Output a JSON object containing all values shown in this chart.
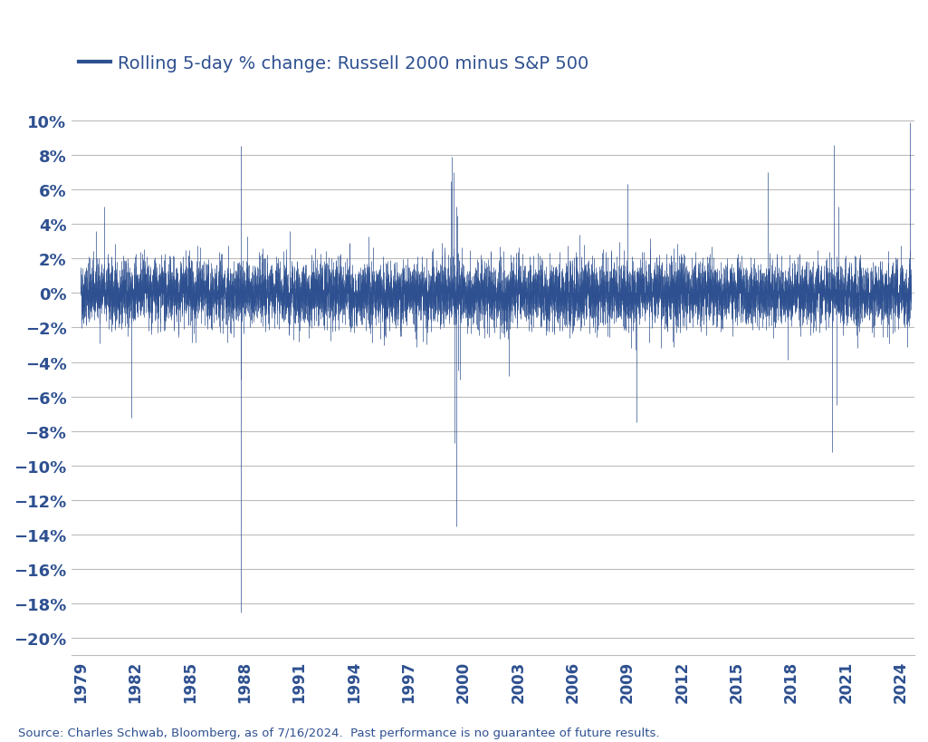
{
  "title": "Rolling 5-day % change: Russell 2000 minus S&P 500",
  "line_color": "#2E5090",
  "background_color": "#FFFFFF",
  "ylabel_ticks": [
    10,
    8,
    6,
    4,
    2,
    0,
    -2,
    -4,
    -6,
    -8,
    -10,
    -12,
    -14,
    -16,
    -18,
    -20
  ],
  "ylim": [
    -21.0,
    11.5
  ],
  "start_year": 1979,
  "end_year": 2024,
  "xtick_years": [
    1979,
    1982,
    1985,
    1988,
    1991,
    1994,
    1997,
    2000,
    2003,
    2006,
    2009,
    2012,
    2015,
    2018,
    2021,
    2024
  ],
  "source_text": "Source: Charles Schwab, Bloomberg, as of 7/16/2024.  Past performance is no guarantee of future results.",
  "legend_label": "Rolling 5-day % change: Russell 2000 minus S&P 500",
  "grid_color": "#BBBBBB",
  "tick_color": "#2E5090",
  "axis_color": "#2E5090"
}
